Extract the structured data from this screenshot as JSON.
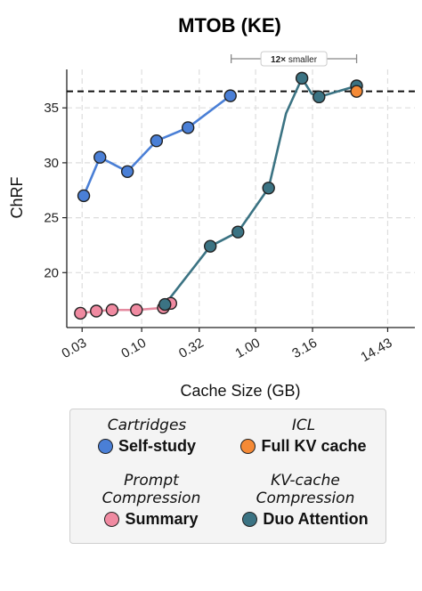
{
  "chart_data": {
    "type": "line",
    "title": "MTOB (KE)",
    "xlabel": "Cache Size (GB)",
    "ylabel": "ChRF",
    "xscale": "log",
    "xlim": [
      0.022,
      25
    ],
    "ylim": [
      15,
      38.5
    ],
    "xticks": [
      0.03,
      0.1,
      0.32,
      1.0,
      3.16,
      14.43
    ],
    "xtick_labels": [
      "0.03",
      "0.10",
      "0.32",
      "1.00",
      "3.16",
      "14.43"
    ],
    "yticks": [
      20,
      25,
      30,
      35
    ],
    "yticks_labels": [
      "20",
      "25",
      "30",
      "35"
    ],
    "grid": true,
    "reference_line": {
      "y": 36.5,
      "style": "dashed"
    },
    "annotation": {
      "bold": "12×",
      "text": "smaller",
      "x_from": 0.61,
      "x_to": 7.7
    },
    "series": [
      {
        "name": "Self-study",
        "color": "#4a7fd6",
        "line_color": "#4a7fd6",
        "x": [
          0.031,
          0.043,
          0.075,
          0.135,
          0.255,
          0.6
        ],
        "y": [
          27.0,
          30.5,
          29.2,
          32.0,
          33.2,
          36.1
        ]
      },
      {
        "name": "Summary",
        "color": "#f08aa1",
        "line_color": "#e58ba0",
        "x": [
          0.029,
          0.04,
          0.055,
          0.09,
          0.155,
          0.18
        ],
        "y": [
          16.3,
          16.5,
          16.6,
          16.6,
          16.8,
          17.2
        ]
      },
      {
        "name": "Duo Attention",
        "color": "#3b7383",
        "line_color": "#3b7383",
        "x": [
          0.16,
          0.4,
          0.7,
          1.3,
          1.85,
          2.55,
          3.1,
          3.6,
          7.7
        ],
        "y": [
          17.1,
          22.4,
          23.7,
          27.7,
          34.5,
          37.7,
          36.3,
          36.0,
          37.0
        ],
        "markers": [
          true,
          true,
          true,
          true,
          false,
          true,
          false,
          true,
          true
        ]
      },
      {
        "name": "Full KV cache",
        "color": "#f58a36",
        "line_color": "#f58a36",
        "x": [
          7.7
        ],
        "y": [
          36.5
        ]
      }
    ],
    "legend": {
      "placement": "bottom",
      "groups": [
        {
          "heading": [
            "Cartridges"
          ],
          "entries": [
            {
              "label": "Self-study",
              "color": "#4a7fd6"
            }
          ]
        },
        {
          "heading": [
            "ICL"
          ],
          "entries": [
            {
              "label": "Full KV cache",
              "color": "#f58a36"
            }
          ]
        },
        {
          "heading": [
            "Prompt",
            "Compression"
          ],
          "entries": [
            {
              "label": "Summary",
              "color": "#f08aa1"
            }
          ]
        },
        {
          "heading": [
            "KV-cache",
            "Compression"
          ],
          "entries": [
            {
              "label": "Duo Attention",
              "color": "#3b7383"
            }
          ]
        }
      ]
    }
  }
}
